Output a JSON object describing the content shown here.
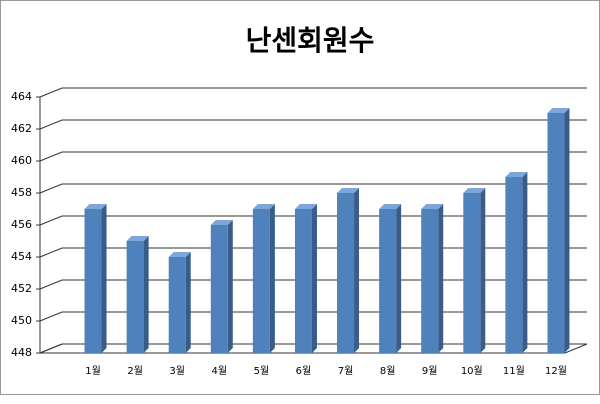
{
  "chart_data": {
    "type": "bar3d",
    "title": "난센회원수",
    "categories": [
      "1월",
      "2월",
      "3월",
      "4월",
      "5월",
      "6월",
      "7월",
      "8월",
      "9월",
      "10월",
      "11월",
      "12월"
    ],
    "values": [
      457,
      455,
      454,
      456,
      457,
      457,
      458,
      457,
      457,
      458,
      459,
      463
    ],
    "color": "#4f81bd",
    "ylim": [
      448,
      464
    ],
    "yticks": [
      448,
      450,
      452,
      454,
      456,
      458,
      460,
      462,
      464
    ],
    "grid": true
  }
}
